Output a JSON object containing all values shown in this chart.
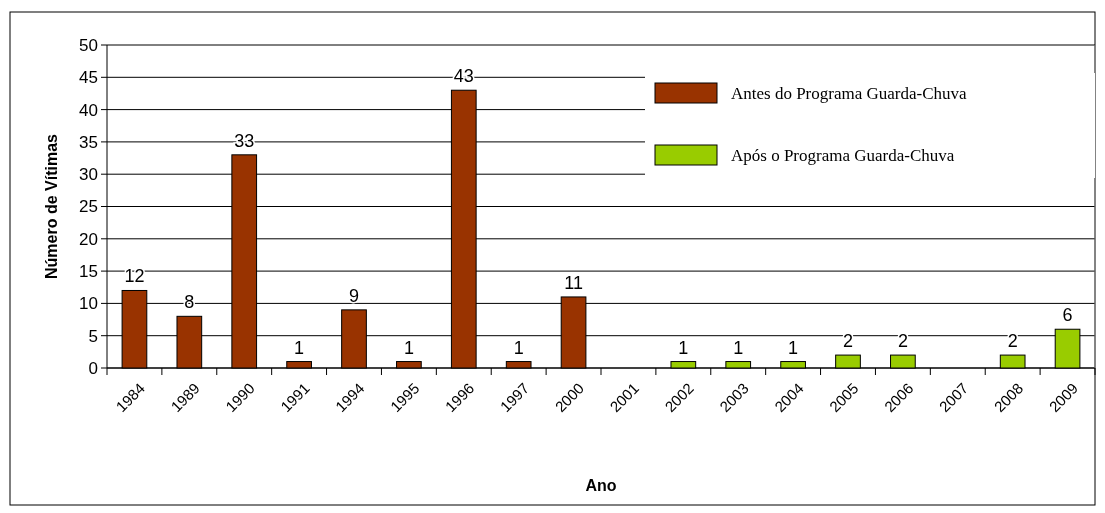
{
  "chart_data": {
    "type": "bar",
    "xlabel": "Ano",
    "ylabel": "Número de Vítimas",
    "categories": [
      "1984",
      "1989",
      "1990",
      "1991",
      "1994",
      "1995",
      "1996",
      "1997",
      "2000",
      "2001",
      "2002",
      "2003",
      "2004",
      "2005",
      "2006",
      "2007",
      "2008",
      "2009"
    ],
    "series": [
      {
        "name": "Antes do Programa Guarda-Chuva",
        "color": "#993300",
        "values": [
          12,
          8,
          33,
          1,
          9,
          1,
          43,
          1,
          11,
          null,
          null,
          null,
          null,
          null,
          null,
          null,
          null,
          null
        ]
      },
      {
        "name": "Após o Programa Guarda-Chuva",
        "color": "#99cc00",
        "values": [
          null,
          null,
          null,
          null,
          null,
          null,
          null,
          null,
          null,
          null,
          1,
          1,
          1,
          2,
          2,
          null,
          2,
          6
        ]
      }
    ],
    "ylim": [
      0,
      50
    ],
    "yticks": [
      0,
      5,
      10,
      15,
      20,
      25,
      30,
      35,
      40,
      45,
      50
    ],
    "grid": "y",
    "legend": "top right",
    "data_labels": true
  }
}
